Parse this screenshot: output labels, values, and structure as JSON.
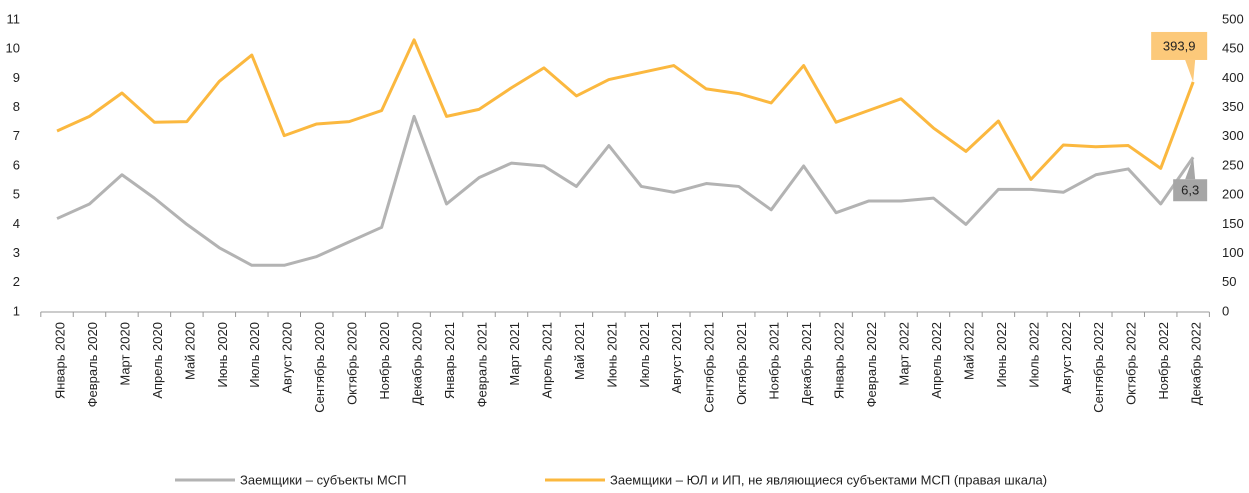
{
  "chart_data": {
    "type": "line",
    "categories": [
      "Январь 2020",
      "Февраль 2020",
      "Март 2020",
      "Апрель 2020",
      "Май 2020",
      "Июнь 2020",
      "Июль 2020",
      "Август 2020",
      "Сентябрь 2020",
      "Октябрь 2020",
      "Ноябрь 2020",
      "Декабрь 2020",
      "Январь 2021",
      "Февраль 2021",
      "Март 2021",
      "Апрель 2021",
      "Май 2021",
      "Июнь 2021",
      "Июль 2021",
      "Август 2021",
      "Сентябрь 2021",
      "Октябрь 2021",
      "Ноябрь 2021",
      "Декабрь 2021",
      "Январь 2022",
      "Февраль 2022",
      "Март 2022",
      "Апрель 2022",
      "Май 2022",
      "Июнь 2022",
      "Июль 2022",
      "Август 2022",
      "Сентябрь 2022",
      "Октябрь 2022",
      "Ноябрь 2022",
      "Декабрь 2022"
    ],
    "series": [
      {
        "name": "Заемщики – субъекты МСП",
        "color": "#b3b3b3",
        "label_color": "#a6a6a6",
        "values": [
          4.2,
          4.7,
          5.7,
          4.9,
          4.0,
          3.2,
          2.6,
          2.6,
          2.9,
          3.4,
          3.9,
          7.7,
          4.7,
          5.6,
          6.1,
          6.0,
          5.3,
          6.7,
          5.3,
          5.1,
          5.4,
          5.3,
          4.5,
          6.0,
          4.4,
          4.8,
          4.8,
          4.9,
          4.0,
          5.2,
          5.2,
          5.1,
          5.7,
          5.9,
          4.7,
          6.3
        ],
        "value_labels": [
          null,
          null,
          null,
          null,
          null,
          null,
          null,
          null,
          null,
          null,
          null,
          null,
          null,
          null,
          null,
          null,
          null,
          null,
          null,
          null,
          null,
          null,
          null,
          null,
          null,
          null,
          null,
          null,
          null,
          null,
          null,
          null,
          null,
          null,
          null,
          "6,3"
        ]
      },
      {
        "name": "Заемщики – ЮЛ и ИП, не являющиеся субъектами МСП (правая шкала)",
        "color": "#fbb83f",
        "label_color": "#fcc97a",
        "axis": "y2",
        "values": [
          310,
          335,
          375,
          325,
          326,
          395,
          440,
          302,
          322,
          326,
          345,
          466,
          335,
          347,
          384,
          418,
          370,
          398,
          410,
          422,
          382,
          374,
          358,
          422,
          325,
          345,
          365,
          315,
          275,
          327,
          227,
          286,
          283,
          285,
          246,
          393.9
        ],
        "value_labels": [
          null,
          null,
          null,
          null,
          null,
          null,
          null,
          null,
          null,
          null,
          null,
          null,
          null,
          null,
          null,
          null,
          null,
          null,
          null,
          null,
          null,
          null,
          null,
          null,
          null,
          null,
          null,
          null,
          null,
          null,
          null,
          null,
          null,
          null,
          null,
          "393,9"
        ]
      }
    ],
    "ylim": [
      1,
      11
    ],
    "yticks": [
      1,
      2,
      3,
      4,
      5,
      6,
      7,
      8,
      9,
      10,
      11
    ],
    "y2lim": [
      0,
      500
    ],
    "y2ticks": [
      0,
      50,
      100,
      150,
      200,
      250,
      300,
      350,
      400,
      450,
      500
    ],
    "grid": false
  }
}
